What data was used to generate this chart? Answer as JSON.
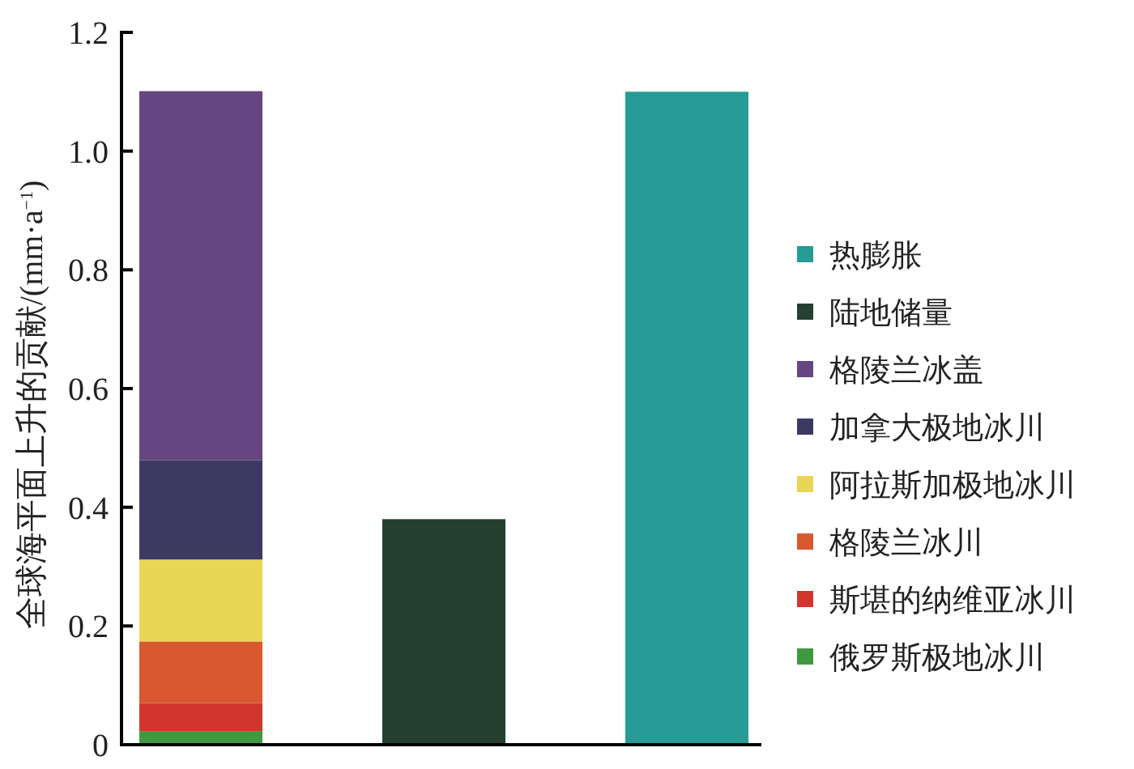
{
  "chart_data": {
    "type": "bar",
    "stacked": true,
    "ylabel": "全球海平面上升的贡献/(mm·a$^{−1}$)",
    "categories": [
      null,
      null,
      null
    ],
    "series": [
      {
        "name": "俄罗斯极地冰川",
        "color": "#3f9a3f",
        "values": [
          0.023,
          null,
          null
        ]
      },
      {
        "name": "斯堪的纳维亚冰川",
        "color": "#d2342e",
        "values": [
          0.047,
          null,
          null
        ]
      },
      {
        "name": "格陵兰冰川",
        "color": "#d9582f",
        "values": [
          0.104,
          null,
          null
        ]
      },
      {
        "name": "阿拉斯加极地冰川",
        "color": "#e8d654",
        "values": [
          0.138,
          null,
          null
        ]
      },
      {
        "name": "加拿大极地冰川",
        "color": "#3c3a62",
        "values": [
          0.167,
          null,
          null
        ]
      },
      {
        "name": "格陵兰冰盖",
        "color": "#654680",
        "values": [
          0.622,
          null,
          null
        ]
      },
      {
        "name": "陆地储量",
        "color": "#253f30",
        "values": [
          null,
          0.38,
          null
        ]
      },
      {
        "name": "热膨胀",
        "color": "#279b96",
        "values": [
          null,
          null,
          1.1
        ]
      }
    ],
    "ylim": [
      0,
      1.2
    ],
    "yticks": [
      0,
      {
        "value": 0.2,
        "label": "0.2"
      },
      {
        "value": 0.4,
        "label": "0.4"
      },
      {
        "value": 0.6,
        "label": "0.6"
      },
      {
        "value": 0.8,
        "label": "0.8"
      },
      {
        "value": 1.0,
        "label": "1.0"
      },
      {
        "value": 1.2,
        "label": "1.2"
      }
    ],
    "grid": false,
    "legend": "right"
  }
}
